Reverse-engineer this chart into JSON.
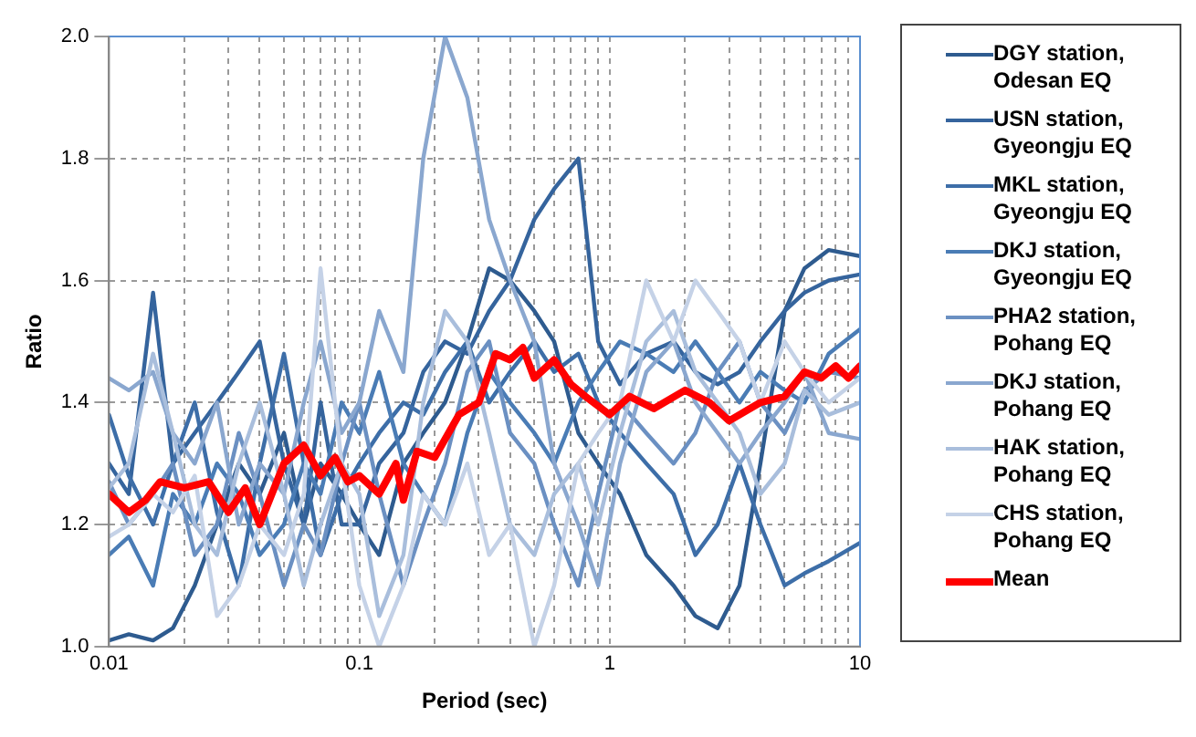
{
  "chart_data": {
    "type": "line",
    "xlabel": "Period (sec)",
    "ylabel": "Ratio",
    "log": "x",
    "grid": true,
    "legend": "right",
    "marker": "none",
    "line_style": "solid",
    "xlim": [
      0.01,
      10
    ],
    "ylim": [
      1.0,
      2.0
    ],
    "yticks": [
      {
        "value": 1.0,
        "label": "1.0"
      },
      {
        "value": 1.2,
        "label": "1.2"
      },
      {
        "value": 1.4,
        "label": "1.4"
      },
      {
        "value": 1.6,
        "label": "1.6"
      },
      {
        "value": 1.8,
        "label": "1.8"
      },
      {
        "value": 2.0,
        "label": "2.0"
      }
    ],
    "xticks": [
      0.01,
      {
        "value": 0.02,
        "label": null
      },
      {
        "value": 0.03,
        "label": null
      },
      {
        "value": 0.04,
        "label": null
      },
      {
        "value": 0.05,
        "label": null
      },
      {
        "value": 0.06,
        "label": null
      },
      {
        "value": 0.07,
        "label": null
      },
      {
        "value": 0.08,
        "label": null
      },
      {
        "value": 0.09,
        "label": null
      },
      0.1,
      {
        "value": 0.2,
        "label": null
      },
      {
        "value": 0.3,
        "label": null
      },
      {
        "value": 0.4,
        "label": null
      },
      {
        "value": 0.5,
        "label": null
      },
      {
        "value": 0.6,
        "label": null
      },
      {
        "value": 0.7,
        "label": null
      },
      {
        "value": 0.8,
        "label": null
      },
      {
        "value": 0.9,
        "label": null
      },
      1,
      {
        "value": 2,
        "label": null
      },
      {
        "value": 3,
        "label": null
      },
      {
        "value": 4,
        "label": null
      },
      {
        "value": 5,
        "label": null
      },
      {
        "value": 6,
        "label": null
      },
      {
        "value": 7,
        "label": null
      },
      {
        "value": 8,
        "label": null
      },
      {
        "value": 9,
        "label": null
      },
      10
    ],
    "x": [
      0.01,
      0.012,
      0.015,
      0.018,
      0.022,
      0.027,
      0.033,
      0.04,
      0.05,
      0.06,
      0.07,
      0.085,
      0.1,
      0.12,
      0.15,
      0.18,
      0.22,
      0.27,
      0.33,
      0.4,
      0.5,
      0.6,
      0.75,
      0.9,
      1.1,
      1.4,
      1.8,
      2.2,
      2.7,
      3.3,
      4,
      5,
      6,
      7.5,
      10
    ],
    "series": [
      {
        "name": "DGY station,\nOdesan EQ",
        "color": "#2e5b8f",
        "values": [
          1.01,
          1.02,
          1.01,
          1.03,
          1.1,
          1.2,
          1.3,
          1.25,
          1.35,
          1.2,
          1.3,
          1.25,
          1.2,
          1.15,
          1.3,
          1.35,
          1.4,
          1.5,
          1.62,
          1.6,
          1.55,
          1.5,
          1.35,
          1.3,
          1.25,
          1.15,
          1.1,
          1.05,
          1.03,
          1.1,
          1.3,
          1.55,
          1.62,
          1.65,
          1.64
        ]
      },
      {
        "name": "USN station,\nGyeongju EQ",
        "color": "#35649d",
        "values": [
          1.3,
          1.25,
          1.58,
          1.3,
          1.35,
          1.4,
          1.45,
          1.5,
          1.3,
          1.2,
          1.4,
          1.2,
          1.2,
          1.3,
          1.35,
          1.45,
          1.5,
          1.48,
          1.55,
          1.6,
          1.7,
          1.75,
          1.8,
          1.5,
          1.43,
          1.48,
          1.5,
          1.45,
          1.43,
          1.45,
          1.5,
          1.55,
          1.58,
          1.6,
          1.61
        ]
      },
      {
        "name": "MKL station,\nGyeongju EQ",
        "color": "#3d6ea8",
        "values": [
          1.38,
          1.28,
          1.2,
          1.3,
          1.4,
          1.22,
          1.1,
          1.3,
          1.48,
          1.3,
          1.15,
          1.25,
          1.3,
          1.35,
          1.4,
          1.38,
          1.45,
          1.5,
          1.4,
          1.45,
          1.5,
          1.45,
          1.48,
          1.4,
          1.35,
          1.3,
          1.25,
          1.15,
          1.2,
          1.3,
          1.2,
          1.1,
          1.12,
          1.14,
          1.17
        ]
      },
      {
        "name": "DKJ station,\nGyeongju EQ",
        "color": "#4a7cb5",
        "values": [
          1.15,
          1.18,
          1.1,
          1.25,
          1.2,
          1.3,
          1.25,
          1.15,
          1.2,
          1.3,
          1.25,
          1.4,
          1.35,
          1.45,
          1.3,
          1.25,
          1.2,
          1.35,
          1.45,
          1.4,
          1.35,
          1.3,
          1.4,
          1.45,
          1.5,
          1.48,
          1.45,
          1.5,
          1.45,
          1.4,
          1.45,
          1.42,
          1.4,
          1.48,
          1.52
        ]
      },
      {
        "name": "PHA2 station,\nPohang EQ",
        "color": "#6b90c2",
        "values": [
          1.27,
          1.2,
          1.25,
          1.3,
          1.15,
          1.2,
          1.35,
          1.25,
          1.1,
          1.2,
          1.15,
          1.3,
          1.4,
          1.25,
          1.1,
          1.2,
          1.3,
          1.45,
          1.5,
          1.35,
          1.3,
          1.2,
          1.1,
          1.25,
          1.4,
          1.35,
          1.3,
          1.35,
          1.45,
          1.5,
          1.4,
          1.35,
          1.42,
          1.45,
          1.44
        ]
      },
      {
        "name": "DKJ station,\nPohang EQ",
        "color": "#8aa7cf",
        "values": [
          1.44,
          1.42,
          1.45,
          1.35,
          1.3,
          1.4,
          1.2,
          1.3,
          1.25,
          1.4,
          1.5,
          1.35,
          1.4,
          1.55,
          1.45,
          1.8,
          2.0,
          1.9,
          1.7,
          1.6,
          1.5,
          1.3,
          1.2,
          1.1,
          1.3,
          1.45,
          1.5,
          1.4,
          1.35,
          1.3,
          1.35,
          1.4,
          1.45,
          1.35,
          1.34
        ]
      },
      {
        "name": "HAK station,\nPohang EQ",
        "color": "#a9bedc",
        "values": [
          1.26,
          1.3,
          1.48,
          1.35,
          1.2,
          1.15,
          1.3,
          1.4,
          1.25,
          1.1,
          1.2,
          1.3,
          1.25,
          1.05,
          1.15,
          1.4,
          1.55,
          1.5,
          1.35,
          1.2,
          1.15,
          1.25,
          1.3,
          1.2,
          1.35,
          1.5,
          1.55,
          1.45,
          1.4,
          1.35,
          1.25,
          1.3,
          1.42,
          1.38,
          1.4
        ]
      },
      {
        "name": "CHS station,\nPohang EQ",
        "color": "#c5d2e7",
        "values": [
          1.18,
          1.2,
          1.25,
          1.22,
          1.28,
          1.05,
          1.1,
          1.2,
          1.15,
          1.25,
          1.62,
          1.3,
          1.1,
          1.0,
          1.1,
          1.25,
          1.2,
          1.3,
          1.15,
          1.2,
          1.0,
          1.1,
          1.3,
          1.35,
          1.4,
          1.6,
          1.5,
          1.6,
          1.55,
          1.5,
          1.4,
          1.5,
          1.45,
          1.4,
          1.44
        ]
      },
      {
        "name": "Mean",
        "color": "#ff0000",
        "x": [
          0.01,
          0.012,
          0.014,
          0.016,
          0.02,
          0.025,
          0.03,
          0.035,
          0.04,
          0.05,
          0.06,
          0.07,
          0.08,
          0.09,
          0.1,
          0.12,
          0.14,
          0.15,
          0.17,
          0.2,
          0.25,
          0.3,
          0.35,
          0.4,
          0.45,
          0.5,
          0.6,
          0.7,
          0.8,
          1,
          1.2,
          1.5,
          2,
          2.5,
          3,
          4,
          5,
          6,
          7,
          8,
          9,
          10
        ],
        "values": [
          1.25,
          1.22,
          1.24,
          1.27,
          1.26,
          1.27,
          1.22,
          1.26,
          1.2,
          1.3,
          1.33,
          1.28,
          1.31,
          1.27,
          1.28,
          1.25,
          1.3,
          1.24,
          1.32,
          1.31,
          1.38,
          1.4,
          1.48,
          1.47,
          1.49,
          1.44,
          1.47,
          1.43,
          1.41,
          1.38,
          1.41,
          1.39,
          1.42,
          1.4,
          1.37,
          1.4,
          1.41,
          1.45,
          1.44,
          1.46,
          1.44,
          1.46
        ]
      }
    ]
  }
}
